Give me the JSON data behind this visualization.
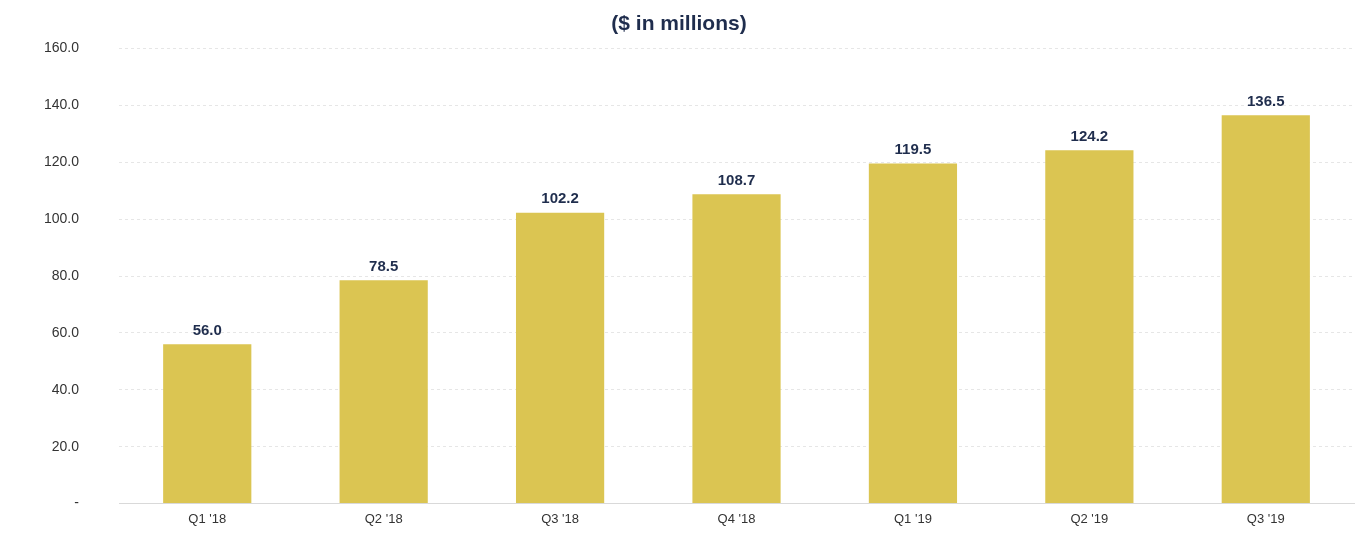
{
  "chart_data": {
    "type": "bar",
    "title": "($ in millions)",
    "categories": [
      "Q1 '18",
      "Q2 '18",
      "Q3 '18",
      "Q4 '18",
      "Q1 '19",
      "Q2 '19",
      "Q3 '19"
    ],
    "values": [
      56.0,
      78.5,
      102.2,
      108.7,
      119.5,
      124.2,
      136.5
    ],
    "value_labels": [
      "56.0",
      "78.5",
      "102.2",
      "108.7",
      "119.5",
      "124.2",
      "136.5"
    ],
    "color": "#dbc552",
    "ylim": [
      0,
      160
    ],
    "yticks": [
      {
        "value": 0,
        "label": "-"
      },
      {
        "value": 20,
        "label": "20.0"
      },
      {
        "value": 40,
        "label": "40.0"
      },
      {
        "value": 60,
        "label": "60.0"
      },
      {
        "value": 80,
        "label": "80.0"
      },
      {
        "value": 100,
        "label": "100.0"
      },
      {
        "value": 120,
        "label": "120.0"
      },
      {
        "value": 140,
        "label": "140.0"
      },
      {
        "value": 160,
        "label": "160.0"
      }
    ],
    "grid": "y",
    "legend": false
  }
}
